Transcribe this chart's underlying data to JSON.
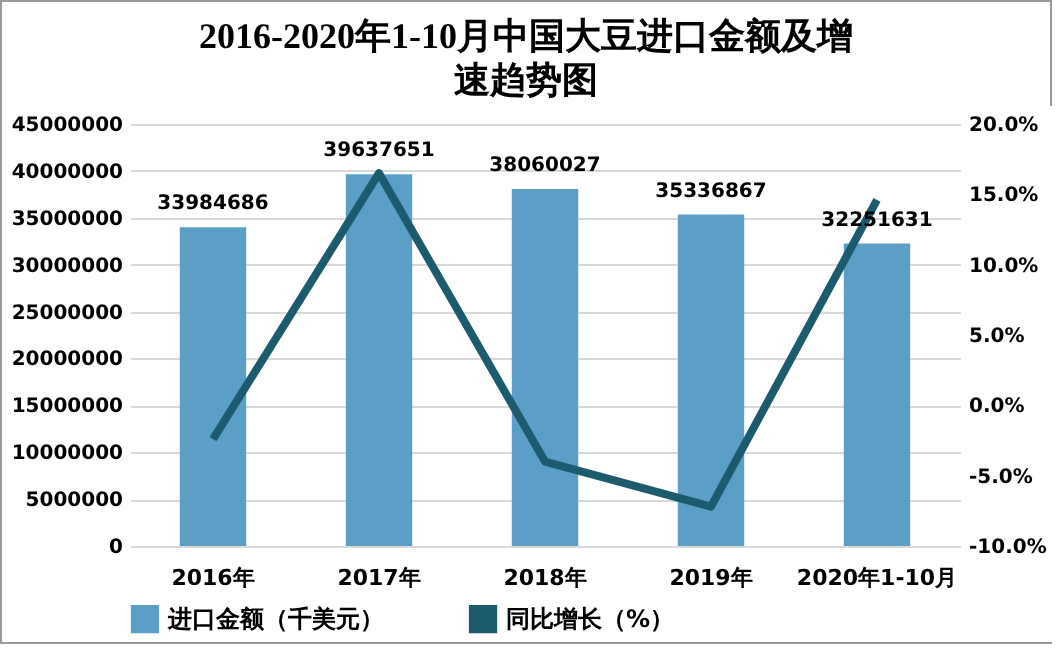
{
  "chart_data": {
    "type": "bar",
    "title": "2016-2020年1-10月中国大豆进口金额及增速趋势图",
    "categories": [
      "2016年",
      "2017年",
      "2018年",
      "2019年",
      "2020年1-10月"
    ],
    "series": [
      {
        "name": "进口金额（千美元）",
        "color": "#5b9fc7",
        "values": [
          33984686,
          39637651,
          38060027,
          35336867,
          32251631
        ],
        "value_labels": [
          "33984686",
          "39637651",
          "38060027",
          "35336867",
          "32251631"
        ]
      },
      {
        "name": "同比增长（%）",
        "type": "line",
        "axis": "y2",
        "color": "#1c5a6e",
        "values": [
          -2.4,
          16.5,
          -4.0,
          -7.2,
          14.6
        ]
      }
    ],
    "ylim": [
      0,
      45000000
    ],
    "yticks": [
      0,
      5000000,
      10000000,
      15000000,
      20000000,
      25000000,
      30000000,
      35000000,
      40000000,
      45000000
    ],
    "y2lim": [
      -10,
      20
    ],
    "y2ticks": [
      {
        "value": -10,
        "label": "-10.0%"
      },
      {
        "value": -5,
        "label": "-5.0%"
      },
      {
        "value": 0,
        "label": "0.0%"
      },
      {
        "value": 5,
        "label": "5.0%"
      },
      {
        "value": 10,
        "label": "10.0%"
      },
      {
        "value": 15,
        "label": "15.0%"
      },
      {
        "value": 20,
        "label": "20.0%"
      }
    ],
    "grid": "y",
    "legend": "bottom",
    "marker": "none",
    "line_style": "solid"
  }
}
